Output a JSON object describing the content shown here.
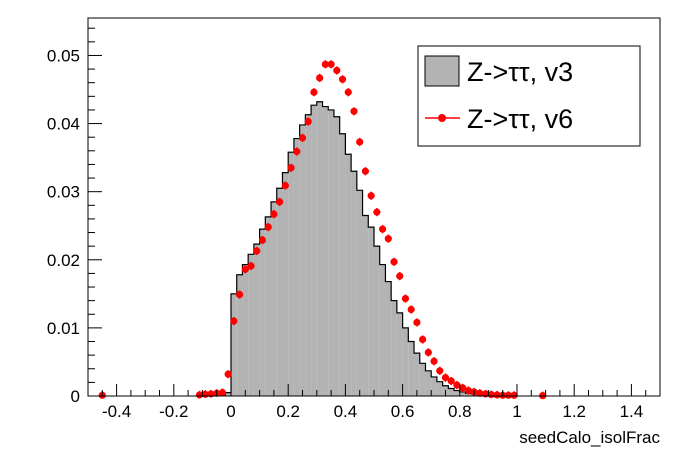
{
  "chart_data": {
    "type": "bar",
    "xlabel": "seedCalo_isolFrac",
    "ylabel": "",
    "xlim": [
      -0.5,
      1.5
    ],
    "ylim": [
      0,
      0.0555
    ],
    "xticks": [
      "-0.4",
      "-0.2",
      "0",
      "0.2",
      "0.4",
      "0.6",
      "0.8",
      "1",
      "1.2",
      "1.4"
    ],
    "yticks": [
      "0",
      "0.01",
      "0.02",
      "0.03",
      "0.04",
      "0.05"
    ],
    "xtick_values": [
      -0.4,
      -0.2,
      0,
      0.2,
      0.4,
      0.6,
      0.8,
      1.0,
      1.2,
      1.4
    ],
    "ytick_values": [
      0,
      0.01,
      0.02,
      0.03,
      0.04,
      0.05
    ],
    "bin_width": 0.02,
    "legend": {
      "placement": "top-right",
      "entries": [
        "Z->ττ, v3",
        "Z->ττ, v6"
      ]
    },
    "series": [
      {
        "name": "Z->ττ, v3",
        "style": "filled-histogram",
        "color": "#b3b3b3",
        "bin_low_edges": [
          -0.02,
          0,
          0.02,
          0.04,
          0.06,
          0.08,
          0.1,
          0.12,
          0.14,
          0.16,
          0.18,
          0.2,
          0.22,
          0.24,
          0.26,
          0.28,
          0.3,
          0.32,
          0.34,
          0.36,
          0.38,
          0.4,
          0.42,
          0.44,
          0.46,
          0.48,
          0.5,
          0.52,
          0.54,
          0.56,
          0.58,
          0.6,
          0.62,
          0.64,
          0.66,
          0.68,
          0.7,
          0.72,
          0.74,
          0.76,
          0.78,
          0.8,
          0.82,
          0.84,
          0.86,
          0.88,
          0.9,
          0.92,
          0.94
        ],
        "values": [
          0.0005,
          0.015,
          0.0178,
          0.0193,
          0.0208,
          0.0223,
          0.0245,
          0.0263,
          0.0285,
          0.0305,
          0.0328,
          0.0358,
          0.0378,
          0.0398,
          0.0413,
          0.0427,
          0.0432,
          0.0425,
          0.042,
          0.041,
          0.0385,
          0.0355,
          0.033,
          0.0302,
          0.0265,
          0.0248,
          0.022,
          0.0193,
          0.0168,
          0.014,
          0.0122,
          0.01,
          0.008,
          0.0063,
          0.0048,
          0.0037,
          0.0028,
          0.0021,
          0.0015,
          0.0011,
          0.0008,
          0.0006,
          0.0004,
          0.0003,
          0.0002,
          0.00012,
          8e-05,
          4e-05,
          2e-05
        ]
      },
      {
        "name": "Z->ττ, v6",
        "style": "markers-with-errors",
        "color": "#ff0000",
        "x": [
          -0.45,
          -0.11,
          -0.09,
          -0.07,
          -0.05,
          -0.03,
          -0.01,
          0.01,
          0.03,
          0.05,
          0.07,
          0.09,
          0.11,
          0.13,
          0.15,
          0.17,
          0.19,
          0.21,
          0.23,
          0.25,
          0.27,
          0.29,
          0.31,
          0.33,
          0.35,
          0.37,
          0.39,
          0.41,
          0.43,
          0.45,
          0.47,
          0.49,
          0.51,
          0.53,
          0.55,
          0.57,
          0.59,
          0.61,
          0.63,
          0.65,
          0.67,
          0.69,
          0.71,
          0.73,
          0.75,
          0.77,
          0.79,
          0.81,
          0.83,
          0.85,
          0.87,
          0.89,
          0.91,
          0.93,
          0.95,
          0.97,
          0.99,
          1.09
        ],
        "y": [
          0.0001,
          0.00015,
          0.00025,
          0.0003,
          0.0004,
          0.0005,
          0.0032,
          0.011,
          0.0149,
          0.0186,
          0.0191,
          0.0213,
          0.0229,
          0.0248,
          0.0267,
          0.0285,
          0.0309,
          0.0335,
          0.0359,
          0.0379,
          0.0403,
          0.0446,
          0.0467,
          0.0487,
          0.0487,
          0.0478,
          0.0465,
          0.0446,
          0.0418,
          0.0373,
          0.033,
          0.0294,
          0.027,
          0.0245,
          0.0231,
          0.0197,
          0.0176,
          0.0143,
          0.0127,
          0.0108,
          0.0083,
          0.0064,
          0.0051,
          0.0037,
          0.0027,
          0.0022,
          0.0016,
          0.0012,
          0.0008,
          0.0006,
          0.0004,
          0.0003,
          0.0002,
          0.00015,
          0.0001,
          0.0001,
          0.0001,
          5e-05
        ],
        "yerr": 0.0006
      }
    ]
  }
}
